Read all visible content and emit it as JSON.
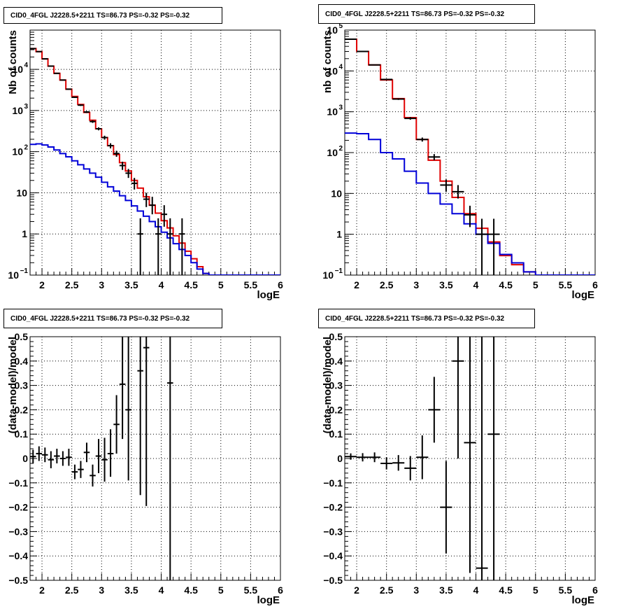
{
  "colors": {
    "data": "#000000",
    "total_model": "#e00000",
    "component_model": "#0000d8"
  },
  "chart_data": [
    {
      "type": "step-histogram",
      "title": "CID0_4FGL J2228.5+2211 TS=86.73 PS=-0.32 PS=-0.32",
      "xlabel": "logE",
      "ylabel": "Nb of counts",
      "xlim": [
        1.8,
        6.0
      ],
      "ylim": [
        0.1,
        90000
      ],
      "yscale": "log",
      "grid": true,
      "xticks": [
        "2",
        "2.5",
        "3",
        "3.5",
        "4",
        "4.5",
        "5",
        "5.5",
        "6"
      ],
      "yticks": [
        {
          "value": 0.1,
          "label": "10",
          "exp": "−1"
        },
        {
          "value": 1,
          "label": "1",
          "exp": ""
        },
        {
          "value": 10,
          "label": "10",
          "exp": ""
        },
        {
          "value": 100,
          "label": "10",
          "exp": "2"
        },
        {
          "value": 1000,
          "label": "10",
          "exp": "3"
        },
        {
          "value": 10000,
          "label": "10",
          "exp": "4"
        }
      ],
      "bin_edges": [
        1.8,
        1.9,
        2.0,
        2.1,
        2.2,
        2.3,
        2.4,
        2.5,
        2.6,
        2.7,
        2.8,
        2.9,
        3.0,
        3.1,
        3.2,
        3.3,
        3.4,
        3.5,
        3.6,
        3.7,
        3.8,
        3.9,
        4.0,
        4.1,
        4.2,
        4.3,
        4.4,
        4.5,
        4.6,
        4.7,
        4.8,
        4.9,
        5.0,
        5.1,
        5.2,
        5.3,
        5.4,
        5.5,
        5.6,
        5.7,
        5.8,
        5.9,
        6.0
      ],
      "series": [
        {
          "role": "total_model",
          "values": [
            32000,
            27000,
            18000,
            12000,
            8000,
            5500,
            3300,
            2200,
            1400,
            900,
            580,
            360,
            220,
            140,
            85,
            54,
            34,
            20,
            13,
            8,
            5,
            3.2,
            2.1,
            1.4,
            0.9,
            0.6,
            0.38,
            0.25,
            0.16,
            0.11,
            0.1,
            0.1,
            0.1,
            0.1,
            0.1,
            0.1,
            0.1,
            0.1,
            0.1,
            0.1,
            0.1,
            0.1
          ]
        },
        {
          "role": "component_model",
          "values": [
            150,
            155,
            145,
            130,
            110,
            90,
            75,
            60,
            48,
            38,
            30,
            24,
            18,
            14,
            11,
            8.5,
            6.5,
            4.8,
            3.6,
            2.7,
            2,
            1.5,
            1.1,
            0.8,
            0.58,
            0.42,
            0.3,
            0.2,
            0.14,
            0.11,
            0.1,
            0.1,
            0.1,
            0.1,
            0.1,
            0.1,
            0.1,
            0.1,
            0.1,
            0.1,
            0.1,
            0.1
          ]
        }
      ],
      "data_points": [
        {
          "x": 1.85,
          "y": 32000,
          "lo": 31600,
          "hi": 32400
        },
        {
          "x": 1.95,
          "y": 27000,
          "lo": 26650,
          "hi": 27350
        },
        {
          "x": 2.05,
          "y": 18000,
          "lo": 17700,
          "hi": 18300
        },
        {
          "x": 2.15,
          "y": 12000,
          "lo": 11750,
          "hi": 12250
        },
        {
          "x": 2.25,
          "y": 8000,
          "lo": 7800,
          "hi": 8200
        },
        {
          "x": 2.35,
          "y": 5500,
          "lo": 5350,
          "hi": 5650
        },
        {
          "x": 2.45,
          "y": 3300,
          "lo": 3200,
          "hi": 3400
        },
        {
          "x": 2.55,
          "y": 2100,
          "lo": 2020,
          "hi": 2180
        },
        {
          "x": 2.65,
          "y": 1350,
          "lo": 1290,
          "hi": 1410
        },
        {
          "x": 2.75,
          "y": 920,
          "lo": 870,
          "hi": 970
        },
        {
          "x": 2.85,
          "y": 540,
          "lo": 500,
          "hi": 580
        },
        {
          "x": 2.95,
          "y": 360,
          "lo": 330,
          "hi": 390
        },
        {
          "x": 3.05,
          "y": 220,
          "lo": 196,
          "hi": 244
        },
        {
          "x": 3.15,
          "y": 140,
          "lo": 120,
          "hi": 160
        },
        {
          "x": 3.25,
          "y": 90,
          "lo": 75,
          "hi": 105
        },
        {
          "x": 3.35,
          "y": 46,
          "lo": 36,
          "hi": 57
        },
        {
          "x": 3.45,
          "y": 30,
          "lo": 23,
          "hi": 38
        },
        {
          "x": 3.55,
          "y": 17,
          "lo": 12,
          "hi": 23
        },
        {
          "x": 3.65,
          "y": 1,
          "lo": 0.1,
          "hi": 2.4
        },
        {
          "x": 3.75,
          "y": 7,
          "lo": 4.5,
          "hi": 10
        },
        {
          "x": 3.85,
          "y": 5,
          "lo": 3,
          "hi": 8
        },
        {
          "x": 3.95,
          "y": 1,
          "lo": 0.1,
          "hi": 2.4
        },
        {
          "x": 4.05,
          "y": 3,
          "lo": 1.5,
          "hi": 5
        },
        {
          "x": 4.15,
          "y": 1,
          "lo": 0.1,
          "hi": 2.4
        },
        {
          "x": 4.35,
          "y": 1,
          "lo": 0.1,
          "hi": 2.4
        }
      ]
    },
    {
      "type": "step-histogram",
      "title": "CID0_4FGL J2228.5+2211 TS=86.73 PS=-0.32 PS=-0.32",
      "xlabel": "logE",
      "ylabel": "nb of counts",
      "xlim": [
        1.8,
        6.0
      ],
      "ylim": [
        0.1,
        100000
      ],
      "yscale": "log",
      "grid": true,
      "xticks": [
        "2",
        "2.5",
        "3",
        "3.5",
        "4",
        "4.5",
        "5",
        "5.5",
        "6"
      ],
      "yticks": [
        {
          "value": 0.1,
          "label": "10",
          "exp": "−1"
        },
        {
          "value": 1,
          "label": "1",
          "exp": ""
        },
        {
          "value": 10,
          "label": "10",
          "exp": ""
        },
        {
          "value": 100,
          "label": "10",
          "exp": "2"
        },
        {
          "value": 1000,
          "label": "10",
          "exp": "3"
        },
        {
          "value": 10000,
          "label": "10",
          "exp": "4"
        },
        {
          "value": 100000,
          "label": "10",
          "exp": "5"
        }
      ],
      "bin_edges": [
        1.8,
        2.0,
        2.2,
        2.4,
        2.6,
        2.8,
        3.0,
        3.2,
        3.4,
        3.6,
        3.8,
        4.0,
        4.2,
        4.4,
        4.6,
        4.8,
        5.0,
        5.2,
        5.4,
        5.6,
        5.8,
        6.0
      ],
      "series": [
        {
          "role": "total_model",
          "values": [
            60000,
            30000,
            14000,
            6000,
            2100,
            720,
            210,
            65,
            20,
            8,
            3.2,
            1.4,
            0.65,
            0.3,
            0.18,
            0.12,
            0.1,
            0.1,
            0.1,
            0.1,
            0.1
          ]
        },
        {
          "role": "component_model",
          "values": [
            300,
            290,
            210,
            100,
            70,
            35,
            18,
            10,
            5.5,
            3.2,
            1.8,
            1,
            0.6,
            0.32,
            0.2,
            0.12,
            0.1,
            0.1,
            0.1,
            0.1,
            0.1
          ]
        }
      ],
      "data_points": [
        {
          "x": 1.9,
          "y": 60000,
          "lo": 59500,
          "hi": 60500
        },
        {
          "x": 2.1,
          "y": 30000,
          "lo": 29650,
          "hi": 30350
        },
        {
          "x": 2.3,
          "y": 14000,
          "lo": 13750,
          "hi": 14250
        },
        {
          "x": 2.5,
          "y": 6200,
          "lo": 6020,
          "hi": 6380
        },
        {
          "x": 2.7,
          "y": 2050,
          "lo": 1950,
          "hi": 2150
        },
        {
          "x": 2.9,
          "y": 690,
          "lo": 640,
          "hi": 740
        },
        {
          "x": 3.1,
          "y": 210,
          "lo": 186,
          "hi": 234
        },
        {
          "x": 3.3,
          "y": 78,
          "lo": 65,
          "hi": 92
        },
        {
          "x": 3.5,
          "y": 16,
          "lo": 11,
          "hi": 22
        },
        {
          "x": 3.7,
          "y": 11,
          "lo": 7.5,
          "hi": 16
        },
        {
          "x": 3.9,
          "y": 3,
          "lo": 1.5,
          "hi": 5
        },
        {
          "x": 4.1,
          "y": 1,
          "lo": 0.1,
          "hi": 2.4
        },
        {
          "x": 4.3,
          "y": 1,
          "lo": 0.1,
          "hi": 2.4
        }
      ]
    },
    {
      "type": "scatter",
      "title": "CID0_4FGL J2228.5+2211 TS=86.73 PS=-0.32 PS=-0.32",
      "xlabel": "logE",
      "ylabel": "(data-model)/model",
      "xlim": [
        1.8,
        6.0
      ],
      "ylim": [
        -0.5,
        0.5
      ],
      "yscale": "linear",
      "grid": true,
      "xticks": [
        "2",
        "2.5",
        "3",
        "3.5",
        "4",
        "4.5",
        "5",
        "5.5",
        "6"
      ],
      "yticks": [
        "−0.5",
        "−0.4",
        "−0.3",
        "−0.2",
        "−0.1",
        "0",
        "0.1",
        "0.2",
        "0.3",
        "0.4",
        "0.5"
      ],
      "points": [
        {
          "x": 1.85,
          "xerr": 0.05,
          "y": 0.008,
          "lo": -0.02,
          "hi": 0.036
        },
        {
          "x": 1.95,
          "xerr": 0.05,
          "y": 0.02,
          "lo": -0.01,
          "hi": 0.05
        },
        {
          "x": 2.05,
          "xerr": 0.05,
          "y": 0.015,
          "lo": -0.015,
          "hi": 0.045
        },
        {
          "x": 2.15,
          "xerr": 0.05,
          "y": -0.005,
          "lo": -0.04,
          "hi": 0.03
        },
        {
          "x": 2.25,
          "xerr": 0.05,
          "y": 0.01,
          "lo": -0.02,
          "hi": 0.04
        },
        {
          "x": 2.35,
          "xerr": 0.05,
          "y": 0.0,
          "lo": -0.03,
          "hi": 0.03
        },
        {
          "x": 2.45,
          "xerr": 0.05,
          "y": 0.005,
          "lo": -0.03,
          "hi": 0.04
        },
        {
          "x": 2.55,
          "xerr": 0.05,
          "y": -0.055,
          "lo": -0.085,
          "hi": -0.025
        },
        {
          "x": 2.65,
          "xerr": 0.05,
          "y": -0.045,
          "lo": -0.08,
          "hi": -0.01
        },
        {
          "x": 2.75,
          "xerr": 0.05,
          "y": 0.025,
          "lo": -0.015,
          "hi": 0.065
        },
        {
          "x": 2.85,
          "xerr": 0.05,
          "y": -0.07,
          "lo": -0.115,
          "hi": -0.025
        },
        {
          "x": 2.95,
          "xerr": 0.05,
          "y": 0.01,
          "lo": -0.06,
          "hi": 0.08
        },
        {
          "x": 3.05,
          "xerr": 0.05,
          "y": -0.005,
          "lo": -0.095,
          "hi": 0.085
        },
        {
          "x": 3.15,
          "xerr": 0.05,
          "y": 0.02,
          "lo": -0.075,
          "hi": 0.12
        },
        {
          "x": 3.25,
          "xerr": 0.05,
          "y": 0.14,
          "lo": 0.02,
          "hi": 0.26
        },
        {
          "x": 3.35,
          "xerr": 0.05,
          "y": 0.305,
          "lo": 0.08,
          "hi": 0.5
        },
        {
          "x": 3.45,
          "xerr": 0.05,
          "y": 0.2,
          "lo": -0.09,
          "hi": 0.5
        },
        {
          "x": 3.65,
          "xerr": 0.05,
          "y": 0.36,
          "lo": -0.15,
          "hi": 0.5
        },
        {
          "x": 3.75,
          "xerr": 0.05,
          "y": 0.455,
          "lo": -0.195,
          "hi": 0.5
        },
        {
          "x": 4.15,
          "xerr": 0.05,
          "y": 0.31,
          "lo": -0.5,
          "hi": 0.5
        }
      ]
    },
    {
      "type": "scatter",
      "title": "CID0_4FGL J2228.5+2211 TS=86.73 PS=-0.32 PS=-0.32",
      "xlabel": "logE",
      "ylabel": "(data-model)/model",
      "xlim": [
        1.8,
        6.0
      ],
      "ylim": [
        -0.5,
        0.5
      ],
      "yscale": "linear",
      "grid": true,
      "xticks": [
        "2",
        "2.5",
        "3",
        "3.5",
        "4",
        "4.5",
        "5",
        "5.5",
        "6"
      ],
      "yticks": [
        "−0.5",
        "−0.4",
        "−0.3",
        "−0.2",
        "−0.1",
        "0",
        "0.1",
        "0.2",
        "0.3",
        "0.4",
        "0.5"
      ],
      "points": [
        {
          "x": 1.9,
          "xerr": 0.1,
          "y": 0.008,
          "lo": -0.005,
          "hi": 0.021
        },
        {
          "x": 2.1,
          "xerr": 0.1,
          "y": 0.005,
          "lo": -0.012,
          "hi": 0.022
        },
        {
          "x": 2.3,
          "xerr": 0.1,
          "y": 0.005,
          "lo": -0.015,
          "hi": 0.025
        },
        {
          "x": 2.5,
          "xerr": 0.1,
          "y": -0.02,
          "lo": -0.045,
          "hi": 0.005
        },
        {
          "x": 2.7,
          "xerr": 0.1,
          "y": -0.018,
          "lo": -0.05,
          "hi": 0.014
        },
        {
          "x": 2.9,
          "xerr": 0.1,
          "y": -0.04,
          "lo": -0.09,
          "hi": 0.01
        },
        {
          "x": 3.1,
          "xerr": 0.1,
          "y": 0.005,
          "lo": -0.085,
          "hi": 0.095
        },
        {
          "x": 3.3,
          "xerr": 0.1,
          "y": 0.2,
          "lo": 0.065,
          "hi": 0.335
        },
        {
          "x": 3.5,
          "xerr": 0.1,
          "y": -0.2,
          "lo": -0.39,
          "hi": -0.01
        },
        {
          "x": 3.7,
          "xerr": 0.1,
          "y": 0.4,
          "lo": 0.0,
          "hi": 0.5
        },
        {
          "x": 3.9,
          "xerr": 0.1,
          "y": 0.065,
          "lo": -0.47,
          "hi": 0.5
        },
        {
          "x": 4.1,
          "xerr": 0.1,
          "y": -0.45,
          "lo": -0.5,
          "hi": 0.5
        },
        {
          "x": 4.3,
          "xerr": 0.1,
          "y": 0.1,
          "lo": -0.5,
          "hi": 0.5
        }
      ]
    }
  ]
}
